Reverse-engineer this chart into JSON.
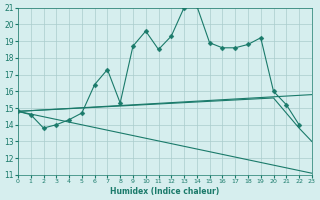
{
  "xlabel": "Humidex (Indice chaleur)",
  "bg_color": "#d6eeee",
  "grid_color": "#aacccc",
  "line_color": "#1a7a6a",
  "xlim": [
    0,
    23
  ],
  "ylim": [
    11,
    21
  ],
  "xticks": [
    0,
    1,
    2,
    3,
    4,
    5,
    6,
    7,
    8,
    9,
    10,
    11,
    12,
    13,
    14,
    15,
    16,
    17,
    18,
    19,
    20,
    21,
    22,
    23
  ],
  "yticks": [
    11,
    12,
    13,
    14,
    15,
    16,
    17,
    18,
    19,
    20,
    21
  ],
  "series1_x": [
    0,
    1,
    2,
    3,
    4,
    5,
    6,
    7,
    8,
    9,
    10,
    11,
    12,
    13,
    14,
    15,
    16,
    17,
    18,
    19,
    20,
    21,
    22
  ],
  "series1_y": [
    14.8,
    14.6,
    13.8,
    14.0,
    14.3,
    14.7,
    16.4,
    17.3,
    15.3,
    18.7,
    19.6,
    18.5,
    19.3,
    21.0,
    21.1,
    18.9,
    18.6,
    18.6,
    18.8,
    19.2,
    16.0,
    15.2,
    14.0
  ],
  "series2_x": [
    0,
    23
  ],
  "series2_y": [
    14.8,
    11.1
  ],
  "series3_x": [
    0,
    23
  ],
  "series3_y": [
    14.8,
    15.8
  ],
  "series4_x": [
    0,
    20,
    22,
    23
  ],
  "series4_y": [
    14.8,
    15.6,
    13.8,
    13.0
  ]
}
